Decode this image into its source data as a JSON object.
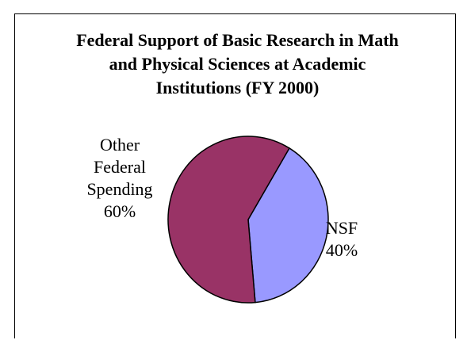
{
  "chart_data": {
    "type": "pie",
    "title_lines": [
      "Federal Support of Basic Research in Math",
      "and Physical Sciences at Academic",
      "Institutions (FY 2000)"
    ],
    "slices": [
      {
        "name": "NSF",
        "value": 40,
        "label_lines": [
          "NSF",
          "40%"
        ],
        "color": "#9999FF"
      },
      {
        "name": "Other Federal Spending",
        "value": 60,
        "label_lines": [
          "Other",
          "Federal",
          "Spending",
          "60%"
        ],
        "color": "#993366"
      }
    ]
  }
}
